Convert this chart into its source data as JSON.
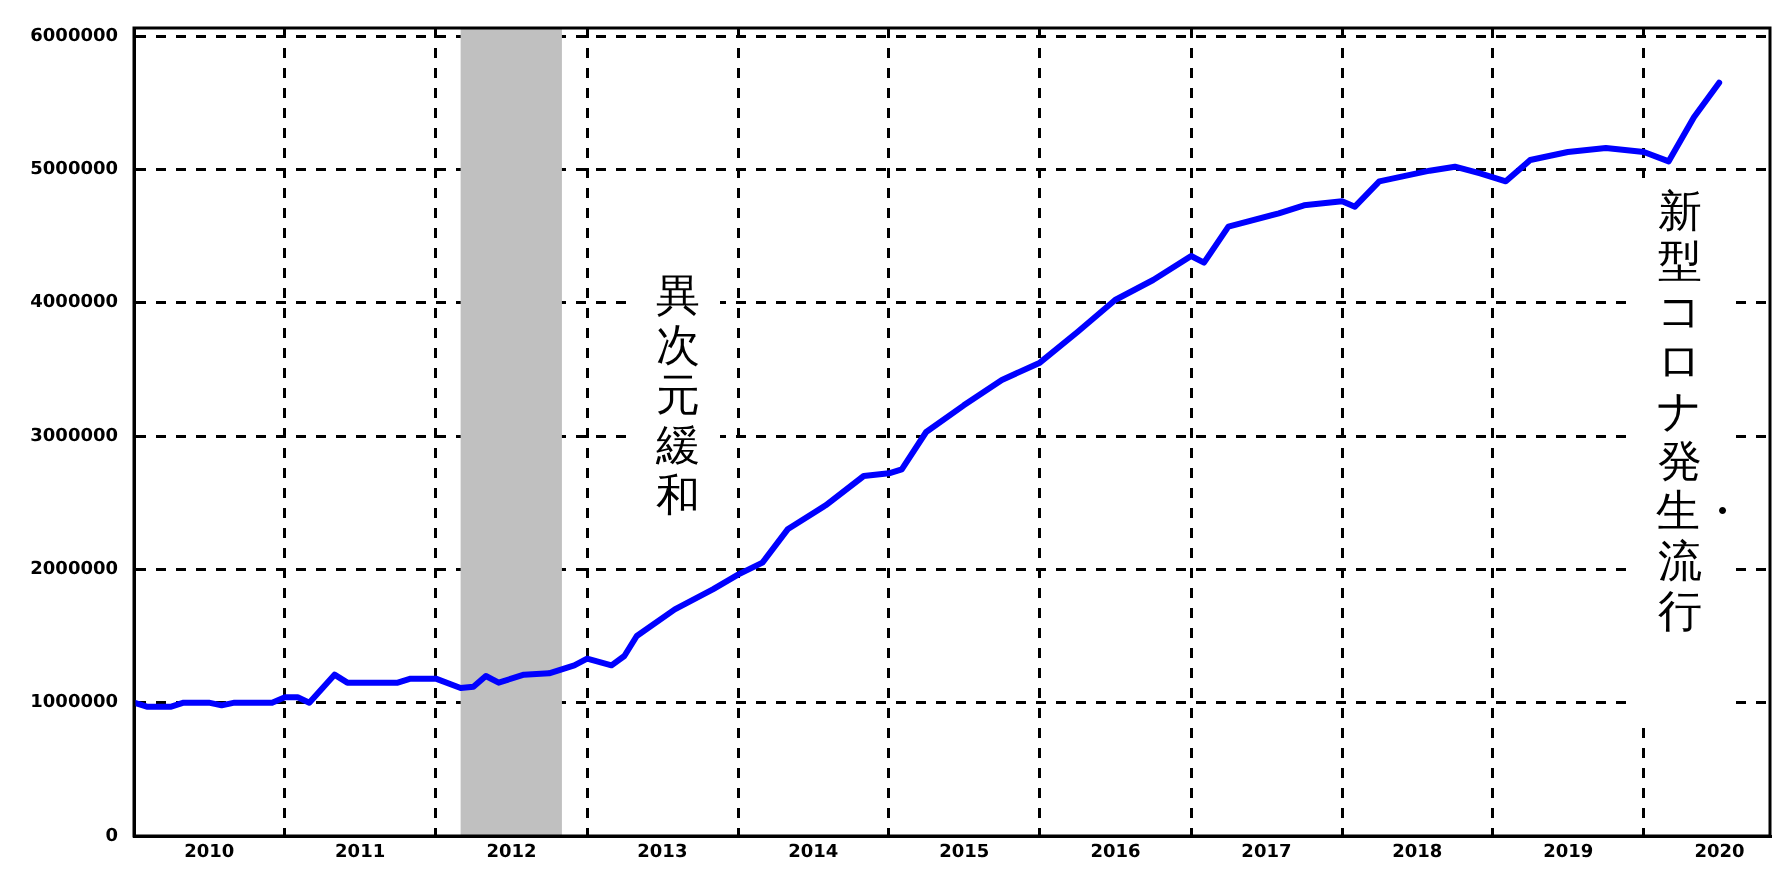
{
  "chart_data": {
    "type": "line",
    "x": [
      "2010-01",
      "2010-02",
      "2010-04",
      "2010-05",
      "2010-07",
      "2010-08",
      "2010-09",
      "2010-12",
      "2011-01",
      "2011-02",
      "2011-03",
      "2011-05",
      "2011-06",
      "2011-10",
      "2011-11",
      "2012-01",
      "2012-03",
      "2012-04",
      "2012-05",
      "2012-06",
      "2012-08",
      "2012-10",
      "2012-12",
      "2013-01",
      "2013-03",
      "2013-04",
      "2013-05",
      "2013-08",
      "2013-11",
      "2014-01",
      "2014-03",
      "2014-05",
      "2014-08",
      "2014-11",
      "2015-01",
      "2015-02",
      "2015-04",
      "2015-07",
      "2015-10",
      "2016-01",
      "2016-04",
      "2016-07",
      "2016-10",
      "2017-01",
      "2017-02",
      "2017-04",
      "2017-08",
      "2017-10",
      "2018-01",
      "2018-02",
      "2018-04",
      "2018-08",
      "2018-10",
      "2018-12",
      "2019-02",
      "2019-04",
      "2019-07",
      "2019-10",
      "2020-01",
      "2020-03",
      "2020-05",
      "2020-07"
    ],
    "series": [
      {
        "color": "#0000ff",
        "values": [
          1000000,
          970000,
          970000,
          1000000,
          1000000,
          980000,
          1000000,
          1000000,
          1040000,
          1040000,
          1000000,
          1210000,
          1150000,
          1150000,
          1180000,
          1180000,
          1110000,
          1120000,
          1200000,
          1150000,
          1210000,
          1220000,
          1280000,
          1330000,
          1280000,
          1350000,
          1500000,
          1700000,
          1850000,
          1960000,
          2050000,
          2300000,
          2480000,
          2700000,
          2720000,
          2750000,
          3030000,
          3230000,
          3420000,
          3550000,
          3780000,
          4020000,
          4170000,
          4350000,
          4300000,
          4570000,
          4670000,
          4730000,
          4760000,
          4720000,
          4910000,
          4990000,
          5020000,
          4970000,
          4910000,
          5070000,
          5130000,
          5160000,
          5130000,
          5060000,
          5390000,
          5650000
        ]
      }
    ],
    "xlim": [
      "2010-01",
      "2020-11"
    ],
    "xticks": [
      {
        "value": "2010-07-02",
        "label": "2010"
      },
      {
        "value": "2011-01",
        "label": null
      },
      {
        "value": "2011-07-02",
        "label": "2011"
      },
      {
        "value": "2012-01",
        "label": null
      },
      {
        "value": "2012-07-02",
        "label": "2012"
      },
      {
        "value": "2013-01",
        "label": null
      },
      {
        "value": "2013-07-02",
        "label": "2013"
      },
      {
        "value": "2014-01",
        "label": null
      },
      {
        "value": "2014-07-02",
        "label": "2014"
      },
      {
        "value": "2015-01",
        "label": null
      },
      {
        "value": "2015-07-02",
        "label": "2015"
      },
      {
        "value": "2016-01",
        "label": null
      },
      {
        "value": "2016-07-02",
        "label": "2016"
      },
      {
        "value": "2017-01",
        "label": null
      },
      {
        "value": "2017-07-02",
        "label": "2017"
      },
      {
        "value": "2018-01",
        "label": null
      },
      {
        "value": "2018-07-02",
        "label": "2018"
      },
      {
        "value": "2019-01",
        "label": null
      },
      {
        "value": "2019-07-02",
        "label": "2019"
      },
      {
        "value": "2020-01",
        "label": null
      },
      {
        "value": "2020-07-02",
        "label": "2020"
      }
    ],
    "ylim": [
      0,
      6060000
    ],
    "yticks": [
      0,
      1000000,
      2000000,
      3000000,
      4000000,
      5000000,
      6000000
    ],
    "bands": [
      {
        "axis": "x",
        "from": "2012-03",
        "to": "2012-11",
        "color": "#c0c0c0"
      }
    ],
    "annotations": [
      "異次元緩和",
      "新型コロナ発生・流行"
    ],
    "grid": true,
    "legend": false,
    "marker": "none",
    "line_style": "solid"
  }
}
